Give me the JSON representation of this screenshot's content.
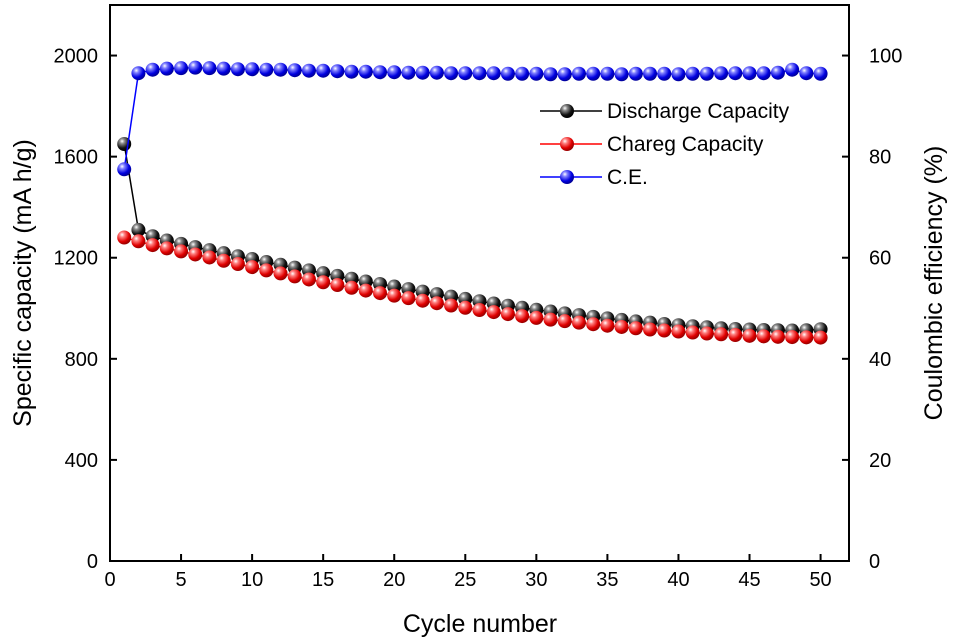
{
  "chart_data": {
    "type": "scatter",
    "x": [
      1,
      2,
      3,
      4,
      5,
      6,
      7,
      8,
      9,
      10,
      11,
      12,
      13,
      14,
      15,
      16,
      17,
      18,
      19,
      20,
      21,
      22,
      23,
      24,
      25,
      26,
      27,
      28,
      29,
      30,
      31,
      32,
      33,
      34,
      35,
      36,
      37,
      38,
      39,
      40,
      41,
      42,
      43,
      44,
      45,
      46,
      47,
      48,
      49,
      50
    ],
    "xlabel": "Cycle number",
    "ylabel": "Specific capacity (mA h/g)",
    "y2label": "Coulombic efficiency (%)",
    "xlim": [
      0,
      52
    ],
    "ylim": [
      0,
      2200
    ],
    "y2lim": [
      0,
      110
    ],
    "x_ticks": [
      0,
      5,
      10,
      15,
      20,
      25,
      30,
      35,
      40,
      45,
      50
    ],
    "y_ticks": [
      0,
      400,
      800,
      1200,
      1600,
      2000
    ],
    "y2_ticks": [
      0,
      20,
      40,
      60,
      80,
      100
    ],
    "grid": false,
    "legend_position": "top-right",
    "series": [
      {
        "name": "Discharge Capacity",
        "axis": "left",
        "color": "#000000",
        "values": [
          1650,
          1310,
          1285,
          1268,
          1255,
          1242,
          1230,
          1218,
          1206,
          1195,
          1183,
          1172,
          1161,
          1150,
          1139,
          1128,
          1117,
          1106,
          1096,
          1086,
          1076,
          1066,
          1056,
          1046,
          1037,
          1028,
          1019,
          1010,
          1002,
          994,
          987,
          980,
          973,
          966,
          960,
          954,
          948,
          943,
          938,
          933,
          929,
          925,
          921,
          918,
          916,
          914,
          913,
          912,
          913,
          917
        ]
      },
      {
        "name": "Chareg Capacity",
        "axis": "left",
        "color": "#ff0000",
        "values": [
          1280,
          1265,
          1250,
          1237,
          1225,
          1213,
          1201,
          1188,
          1175,
          1163,
          1150,
          1138,
          1126,
          1114,
          1103,
          1092,
          1081,
          1070,
          1060,
          1050,
          1040,
          1030,
          1020,
          1011,
          1002,
          993,
          985,
          977,
          969,
          962,
          955,
          949,
          943,
          937,
          931,
          926,
          921,
          916,
          912,
          908,
          904,
          900,
          897,
          894,
          891,
          889,
          887,
          886,
          885,
          884
        ]
      },
      {
        "name": "C.E.",
        "axis": "right",
        "color": "#0000ff",
        "values": [
          77.5,
          96.5,
          97.2,
          97.4,
          97.5,
          97.6,
          97.5,
          97.4,
          97.3,
          97.3,
          97.2,
          97.2,
          97.1,
          97,
          97,
          96.9,
          96.8,
          96.8,
          96.7,
          96.7,
          96.6,
          96.6,
          96.6,
          96.5,
          96.5,
          96.5,
          96.5,
          96.4,
          96.4,
          96.4,
          96.3,
          96.3,
          96.4,
          96.4,
          96.4,
          96.3,
          96.4,
          96.4,
          96.4,
          96.3,
          96.4,
          96.4,
          96.5,
          96.5,
          96.5,
          96.5,
          96.6,
          97.2,
          96.5,
          96.4
        ]
      }
    ]
  }
}
